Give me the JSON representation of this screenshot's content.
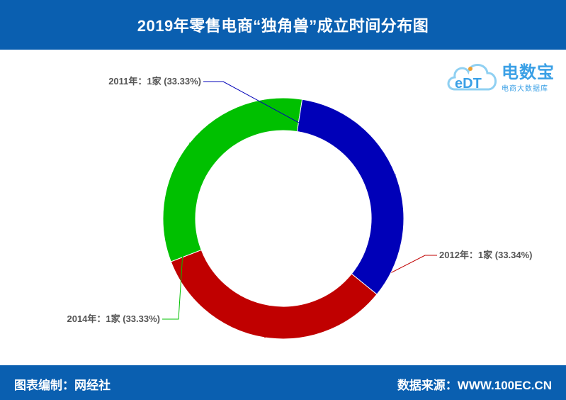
{
  "header": {
    "title": "2019年零售电商“独角兽”成立时间分布图"
  },
  "footer": {
    "left": "图表编制：网经社",
    "right": "数据来源：WWW.100EC.CN"
  },
  "logo": {
    "name": "电数宝",
    "sub": "电商大数据库",
    "mark": "eDT"
  },
  "chart_data": {
    "type": "pie",
    "donut": true,
    "categories": [
      "2011年",
      "2012年",
      "2014年"
    ],
    "values": [
      1,
      1,
      1
    ],
    "percents": [
      33.33,
      33.34,
      33.33
    ],
    "labels": [
      "2011年：1家 (33.33%)",
      "2012年：1家 (33.34%)",
      "2014年：1家 (33.33%)"
    ],
    "colors": [
      "#0000b8",
      "#c00000",
      "#00c000"
    ]
  }
}
